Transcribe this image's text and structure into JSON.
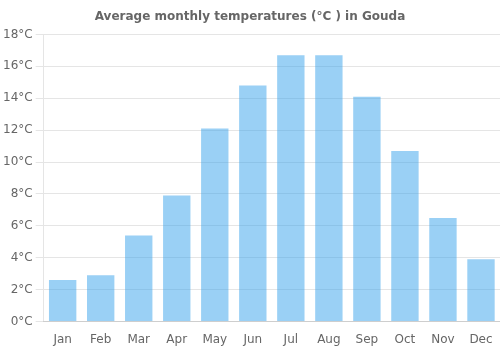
{
  "chart_data": {
    "type": "bar",
    "title": "Average monthly temperatures (°C ) in Gouda",
    "categories": [
      "Jan",
      "Feb",
      "Mar",
      "Apr",
      "May",
      "Jun",
      "Jul",
      "Aug",
      "Sep",
      "Oct",
      "Nov",
      "Dec"
    ],
    "values": [
      2.6,
      2.9,
      5.4,
      7.9,
      12.1,
      14.8,
      16.7,
      16.7,
      14.1,
      10.7,
      6.5,
      3.9
    ],
    "ylim": [
      0,
      18
    ],
    "yticks": [
      {
        "value": 0,
        "label": "0°C"
      },
      {
        "value": 2,
        "label": "2°C"
      },
      {
        "value": 4,
        "label": "4°C"
      },
      {
        "value": 6,
        "label": "6°C"
      },
      {
        "value": 8,
        "label": "8°C"
      },
      {
        "value": 10,
        "label": "10°C"
      },
      {
        "value": 12,
        "label": "12°C"
      },
      {
        "value": 14,
        "label": "14°C"
      },
      {
        "value": 16,
        "label": "16°C"
      },
      {
        "value": 18,
        "label": "18°C"
      }
    ],
    "grid": true
  }
}
